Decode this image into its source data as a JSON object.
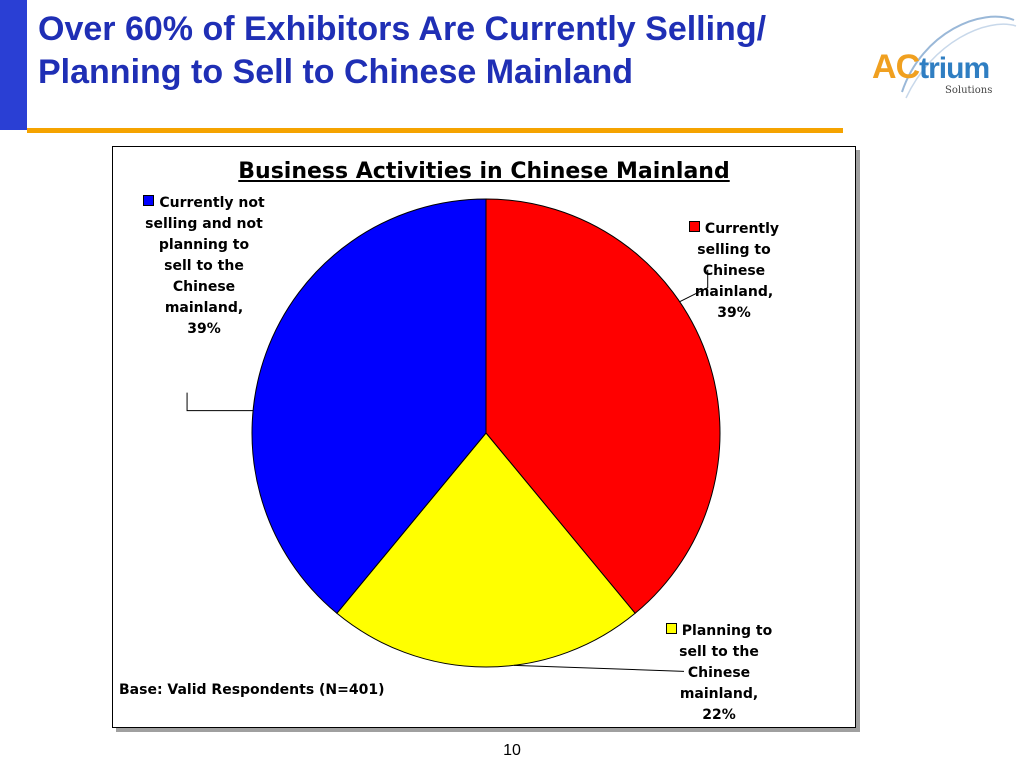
{
  "slide": {
    "title_line1": "Over 60% of Exhibitors Are Currently Selling/",
    "title_line2": "Planning to Sell to Chinese Mainland",
    "page_number": "10",
    "colors": {
      "title": "#1f2fb5",
      "left_bar": "#2a3fd4",
      "rule": "#f5a300"
    }
  },
  "logo": {
    "word_a": "A",
    "word_c": "C",
    "word_rest": "trium",
    "subtitle": "Solutions"
  },
  "chart_data": {
    "type": "pie",
    "title": "Business Activities in Chinese Mainland",
    "slices": [
      {
        "name": "Currently selling to Chinese mainland",
        "value": 39,
        "color": "#ff0000",
        "label_lines": [
          "Currently",
          "selling to",
          "Chinese",
          "mainland,",
          "39%"
        ]
      },
      {
        "name": "Planning to sell to the Chinese mainland",
        "value": 22,
        "color": "#ffff00",
        "label_lines": [
          "Planning to",
          "sell to the",
          "Chinese",
          "mainland,",
          "22%"
        ]
      },
      {
        "name": "Currently not selling and not planning to sell to the Chinese mainland",
        "value": 39,
        "color": "#0000ff",
        "label_lines": [
          "Currently not",
          "selling and not",
          "planning to",
          "sell to the",
          "Chinese",
          "mainland,",
          "39%"
        ]
      }
    ],
    "start_angle": "12 o'clock",
    "direction": "clockwise",
    "legend": "none",
    "note": "Base: Valid Respondents (N=401)"
  }
}
